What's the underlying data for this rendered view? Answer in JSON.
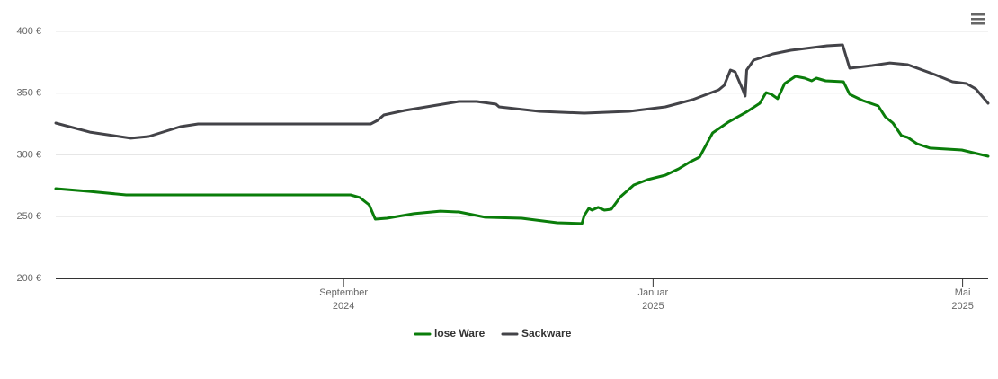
{
  "chart_data": {
    "type": "line",
    "xlim": [
      4.28,
      16.33
    ],
    "xticks": [
      {
        "value": 8,
        "label": "September 2024"
      },
      {
        "value": 12,
        "label": "Januar 2025"
      },
      {
        "value": 16,
        "label": "Mai 2025"
      }
    ],
    "ylim": [
      200,
      400
    ],
    "yticks": [
      {
        "value": 200,
        "label": "200 €"
      },
      {
        "value": 250,
        "label": "250 €"
      },
      {
        "value": 300,
        "label": "300 €"
      },
      {
        "value": 350,
        "label": "350 €"
      },
      {
        "value": 400,
        "label": "400 €"
      }
    ],
    "grid": true,
    "legend": "bottom",
    "series": [
      {
        "name": "lose Ware",
        "color": "#0a7d0a",
        "x": [
          4.28,
          4.72,
          5.19,
          6.47,
          8.09,
          8.21,
          8.33,
          8.41,
          8.56,
          8.91,
          9.25,
          9.49,
          9.83,
          10.3,
          10.76,
          11.08,
          11.11,
          11.17,
          11.21,
          11.29,
          11.37,
          11.46,
          11.58,
          11.75,
          11.93,
          12.16,
          12.33,
          12.48,
          12.6,
          12.77,
          12.97,
          13.2,
          13.38,
          13.46,
          13.53,
          13.61,
          13.7,
          13.84,
          13.96,
          14.05,
          14.11,
          14.23,
          14.46,
          14.54,
          14.71,
          14.91,
          15.0,
          15.1,
          15.21,
          15.29,
          15.41,
          15.58,
          15.99,
          16.33
        ],
        "values": [
          272.7,
          270.5,
          267.6,
          267.6,
          267.6,
          265.5,
          259.6,
          248.0,
          248.7,
          252.4,
          254.5,
          253.8,
          249.5,
          248.7,
          245.1,
          244.4,
          250.9,
          256.7,
          255.3,
          257.5,
          255.3,
          256.0,
          266.2,
          275.6,
          280.0,
          283.6,
          288.7,
          294.5,
          298.2,
          317.8,
          326.5,
          334.5,
          341.8,
          350.5,
          349.1,
          345.5,
          357.8,
          363.6,
          362.2,
          360.0,
          362.2,
          360.0,
          359.3,
          349.1,
          344.0,
          339.6,
          330.9,
          325.8,
          315.6,
          314.2,
          309.1,
          305.5,
          304.0,
          298.9
        ]
      },
      {
        "name": "Sackware",
        "color": "#434348",
        "x": [
          4.28,
          4.72,
          5.25,
          5.48,
          5.89,
          6.12,
          7.05,
          8.35,
          8.44,
          8.52,
          8.79,
          9.14,
          9.49,
          9.72,
          9.97,
          10.01,
          10.53,
          11.11,
          11.69,
          12.16,
          12.51,
          12.85,
          12.92,
          13.0,
          13.06,
          13.16,
          13.19,
          13.21,
          13.3,
          13.55,
          13.78,
          14.25,
          14.45,
          14.54,
          14.83,
          15.06,
          15.29,
          15.64,
          15.87,
          16.05,
          16.17,
          16.33
        ],
        "values": [
          325.8,
          318.5,
          313.5,
          314.9,
          322.9,
          325.1,
          325.1,
          325.1,
          328.0,
          332.4,
          336.0,
          339.6,
          343.3,
          343.3,
          341.1,
          338.9,
          335.3,
          333.8,
          335.3,
          338.9,
          344.7,
          352.7,
          356.4,
          368.7,
          367.3,
          352.7,
          347.6,
          368.7,
          376.7,
          381.8,
          384.7,
          388.4,
          389.1,
          370.2,
          372.4,
          374.5,
          373.1,
          365.1,
          359.3,
          357.8,
          353.5,
          341.8
        ]
      }
    ]
  }
}
